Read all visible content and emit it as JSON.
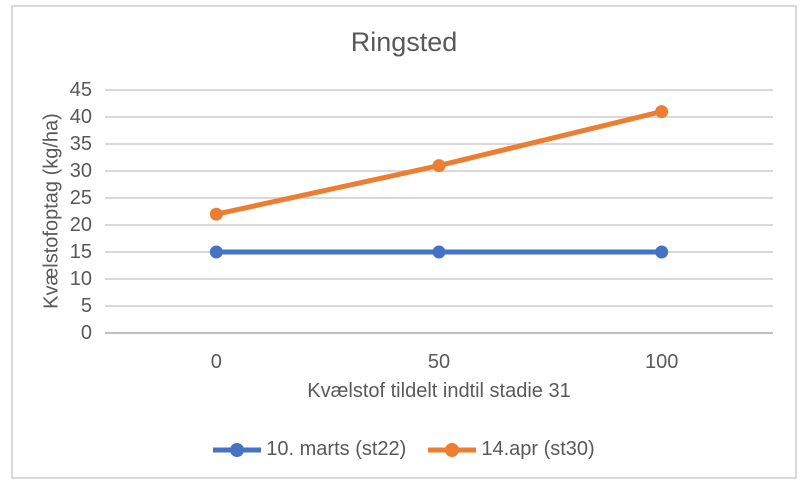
{
  "window": {
    "background": "#FFFFFF",
    "frame_border_color": "#D9D9D9"
  },
  "chart_data": {
    "type": "line",
    "title": "Ringsted",
    "xlabel": "Kvælstof tildelt indtil stadie 31",
    "ylabel": "Kvælstofoptag (kg/ha)",
    "categories": [
      "0",
      "50",
      "100"
    ],
    "series": [
      {
        "name": "10. marts (st22)",
        "values": [
          15,
          15,
          15
        ],
        "color": "#4472C4"
      },
      {
        "name": "14.apr (st30)",
        "values": [
          22,
          31,
          41
        ],
        "color": "#ED7D31"
      }
    ],
    "ylim": [
      0,
      45
    ],
    "ytick_step": 5,
    "grid": true,
    "legend_position": "bottom",
    "text_color": "#595959",
    "gridline_color": "#D9D9D9",
    "axisline_color": "#BFBFBF"
  }
}
